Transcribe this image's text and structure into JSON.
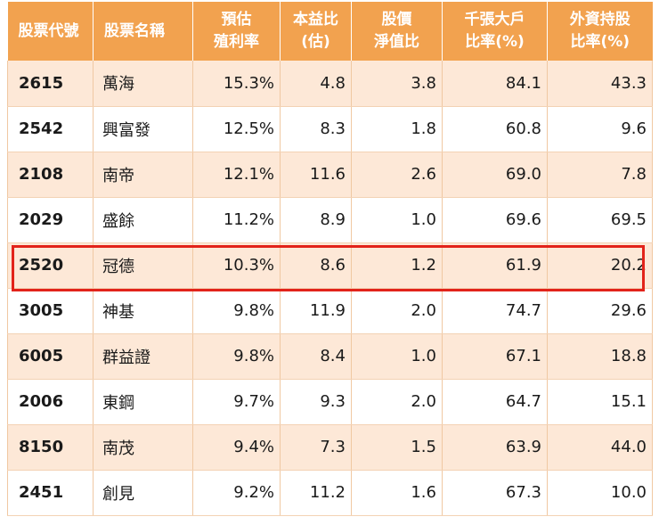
{
  "table": {
    "headers": [
      [
        "股票代號"
      ],
      [
        "股票名稱"
      ],
      [
        "預估",
        "殖利率"
      ],
      [
        "本益比",
        "(估)"
      ],
      [
        "股價",
        "淨值比"
      ],
      [
        "千張大戶",
        "比率(%)"
      ],
      [
        "外資持股",
        "比率(%)"
      ]
    ],
    "rows": [
      [
        "2615",
        "萬海",
        "15.3%",
        "4.8",
        "3.8",
        "84.1",
        "43.3"
      ],
      [
        "2542",
        "興富發",
        "12.5%",
        "8.3",
        "1.8",
        "60.8",
        "9.6"
      ],
      [
        "2108",
        "南帝",
        "12.1%",
        "11.6",
        "2.6",
        "69.0",
        "7.8"
      ],
      [
        "2029",
        "盛餘",
        "11.2%",
        "8.9",
        "1.0",
        "69.6",
        "69.5"
      ],
      [
        "2520",
        "冠德",
        "10.3%",
        "8.6",
        "1.2",
        "61.9",
        "20.2"
      ],
      [
        "3005",
        "神基",
        "9.8%",
        "11.9",
        "2.0",
        "74.7",
        "29.6"
      ],
      [
        "6005",
        "群益證",
        "9.8%",
        "8.4",
        "1.0",
        "67.1",
        "18.8"
      ],
      [
        "2006",
        "東鋼",
        "9.7%",
        "9.3",
        "2.0",
        "64.7",
        "15.1"
      ],
      [
        "8150",
        "南茂",
        "9.4%",
        "7.3",
        "1.5",
        "63.9",
        "44.0"
      ],
      [
        "2451",
        "創見",
        "9.2%",
        "11.2",
        "1.6",
        "67.3",
        "10.0"
      ]
    ],
    "highlighted_row": 4
  },
  "colors": {
    "header_bg": "#f2a24f",
    "header_text": "#ffffff",
    "row_stripe": "#fde8d7",
    "row_plain": "#ffffff",
    "highlight_border": "#e2231a"
  }
}
